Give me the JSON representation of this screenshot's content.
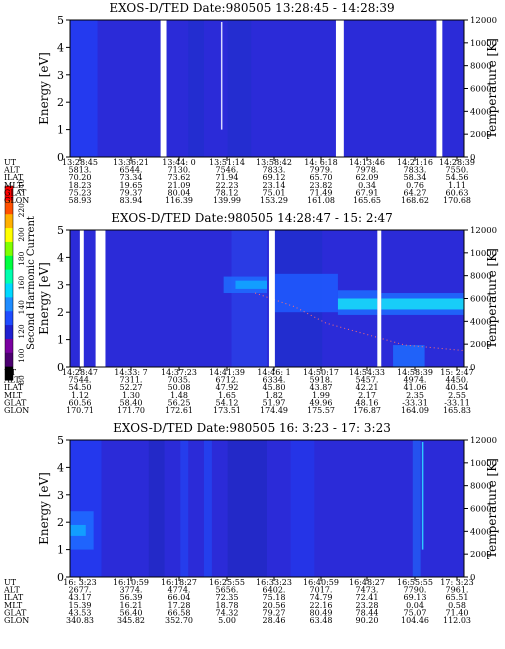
{
  "chart_data": [
    {
      "type": "heatmap",
      "title": "EXOS-D/TED   Date:980505   13:28:45 - 14:28:39",
      "ylabel": "Energy [eV]",
      "y2label": "Temperature [K]",
      "ylim": [
        0,
        5
      ],
      "y2lim": [
        0,
        12000
      ],
      "yticks": [
        "0",
        "1",
        "2",
        "3",
        "4",
        "5"
      ],
      "y2ticks": [
        "0",
        "2000",
        "4000",
        "6000",
        "8000",
        "10000",
        "12000"
      ],
      "background_color": "#2b2bd8",
      "gaps": [
        [
          0.23,
          0.245
        ],
        [
          0.675,
          0.695
        ],
        [
          0.93,
          0.945
        ]
      ],
      "bands": [
        {
          "start": 0.0,
          "end": 0.07,
          "color": "#1f44ff",
          "opacity": 0.6
        },
        {
          "start": 0.3,
          "end": 0.34,
          "color": "#1c30c8",
          "opacity": 0.5
        },
        {
          "start": 0.4,
          "end": 0.46,
          "color": "#1c30c8",
          "opacity": 0.45
        }
      ],
      "spikes": [
        {
          "at": 0.385,
          "color": "#d8d8ff"
        }
      ],
      "blobs": [],
      "dotted_line": [],
      "table": {
        "labels": [
          "UT",
          "ALT",
          "ILAT",
          "MLT",
          "GLAT",
          "GLON"
        ],
        "columns": [
          [
            "13:28:45",
            "5813.",
            "70.20",
            "18.23",
            "75.23",
            "58.93"
          ],
          [
            "13:36:21",
            "6544.",
            "73.34",
            "19.65",
            "79.37",
            "83.94"
          ],
          [
            "13:44: 0",
            "7130.",
            "73.62",
            "21.09",
            "80.04",
            "116.39"
          ],
          [
            "13:51:14",
            "7546.",
            "71.94",
            "22.23",
            "78.12",
            "139.99"
          ],
          [
            "13:58:42",
            "7833.",
            "69.12",
            "23.14",
            "75.01",
            "153.29"
          ],
          [
            "14: 6:18",
            "7979.",
            "65.70",
            "23.82",
            "71.49",
            "161.08"
          ],
          [
            "14:13:46",
            "7978.",
            "62.09",
            "0.34",
            "67.91",
            "165.65"
          ],
          [
            "14:21:16",
            "7833.",
            "58.34",
            "0.76",
            "64.27",
            "168.62"
          ],
          [
            "14:28:39",
            "7550.",
            "54.56",
            "1.11",
            "60.63",
            "170.68"
          ]
        ]
      }
    },
    {
      "type": "heatmap",
      "title": "EXOS-D/TED   Date:980505   14:28:47 - 15: 2:47",
      "ylabel": "Energy [eV]",
      "y2label": "Temperature [K]",
      "ylim": [
        0,
        5
      ],
      "y2lim": [
        0,
        12000
      ],
      "yticks": [
        "0",
        "1",
        "2",
        "3",
        "4",
        "5"
      ],
      "y2ticks": [
        "0",
        "2000",
        "4000",
        "6000",
        "8000",
        "10000",
        "12000"
      ],
      "background_color": "#2b2bd8",
      "gaps": [
        [
          0.025,
          0.035
        ],
        [
          0.065,
          0.09
        ],
        [
          0.505,
          0.52
        ],
        [
          0.78,
          0.79
        ]
      ],
      "bands": [
        {
          "start": 0.41,
          "end": 0.5,
          "color": "#2a4cf0",
          "opacity": 0.5
        },
        {
          "start": 0.52,
          "end": 0.64,
          "color": "#1c30c8",
          "opacity": 0.55
        }
      ],
      "spikes": [],
      "blobs": [
        {
          "x0": 0.39,
          "x1": 0.5,
          "y0": 2.7,
          "y1": 3.3,
          "color": "#1f6cff"
        },
        {
          "x0": 0.42,
          "x1": 0.5,
          "y0": 2.85,
          "y1": 3.15,
          "color": "#10a8ff"
        },
        {
          "x0": 0.52,
          "x1": 0.68,
          "y0": 2.0,
          "y1": 3.4,
          "color": "#1f5cff"
        },
        {
          "x0": 0.68,
          "x1": 0.78,
          "y0": 1.9,
          "y1": 2.8,
          "color": "#1f6cff"
        },
        {
          "x0": 0.68,
          "x1": 0.78,
          "y0": 2.1,
          "y1": 2.5,
          "color": "#18e0f8"
        },
        {
          "x0": 0.79,
          "x1": 1.0,
          "y0": 1.9,
          "y1": 2.7,
          "color": "#1f6cff"
        },
        {
          "x0": 0.79,
          "x1": 1.0,
          "y0": 2.1,
          "y1": 2.5,
          "color": "#18e0f8"
        },
        {
          "x0": 0.82,
          "x1": 0.9,
          "y0": 0.0,
          "y1": 0.8,
          "color": "#1f6cff"
        }
      ],
      "dotted_line": [
        [
          0.47,
          2.7
        ],
        [
          0.57,
          2.2
        ],
        [
          0.65,
          1.6
        ],
        [
          0.75,
          1.2
        ],
        [
          0.85,
          0.8
        ],
        [
          1.0,
          0.6
        ]
      ],
      "table": {
        "labels": [
          "UT",
          "ALT",
          "ILAT",
          "MLT",
          "GLAT",
          "GLON"
        ],
        "columns": [
          [
            "14:28:47",
            "7544.",
            "54.50",
            "1.12",
            "60.56",
            "170.71"
          ],
          [
            "14:33: 7",
            "7311.",
            "52.27",
            "1.30",
            "58.40",
            "171.70"
          ],
          [
            "14:37:23",
            "7035.",
            "50.08",
            "1.48",
            "56.25",
            "172.61"
          ],
          [
            "14:41:39",
            "6712.",
            "47.92",
            "1.65",
            "54.12",
            "173.51"
          ],
          [
            "14:46: 1",
            "6334.",
            "45.80",
            "1.82",
            "51.97",
            "174.49"
          ],
          [
            "14:50:17",
            "5918.",
            "43.87",
            "1.99",
            "49.96",
            "175.57"
          ],
          [
            "14:54:33",
            "5457.",
            "42.21",
            "2.17",
            "48.16",
            "176.87"
          ],
          [
            "14:58:39",
            "4974.",
            "41.06",
            "2.35",
            "-33.31",
            "164.09"
          ],
          [
            "15: 2:47",
            "4450.",
            "40.54",
            "2.55",
            "-33.11",
            "165.83"
          ]
        ]
      }
    },
    {
      "type": "heatmap",
      "title": "EXOS-D/TED   Date:980505   16: 3:23 - 17: 3:23",
      "ylabel": "Energy [eV]",
      "y2label": "Temperature [K]",
      "ylim": [
        0,
        5
      ],
      "y2lim": [
        0,
        12000
      ],
      "yticks": [
        "0",
        "1",
        "2",
        "3",
        "4",
        "5"
      ],
      "y2ticks": [
        "0",
        "2000",
        "4000",
        "6000",
        "8000",
        "10000",
        "12000"
      ],
      "background_color": "#2b2bd8",
      "gaps": [],
      "bands": [
        {
          "start": 0.0,
          "end": 0.08,
          "color": "#1f44ff",
          "opacity": 0.55
        },
        {
          "start": 0.2,
          "end": 0.24,
          "color": "#1c28b8",
          "opacity": 0.5
        },
        {
          "start": 0.28,
          "end": 0.3,
          "color": "#1f50ff",
          "opacity": 0.5
        },
        {
          "start": 0.34,
          "end": 0.36,
          "color": "#1f50ff",
          "opacity": 0.55
        },
        {
          "start": 0.4,
          "end": 0.5,
          "color": "#1c28b8",
          "opacity": 0.5
        },
        {
          "start": 0.56,
          "end": 0.62,
          "color": "#1f44ff",
          "opacity": 0.4
        },
        {
          "start": 0.87,
          "end": 0.89,
          "color": "#1f6cff",
          "opacity": 0.6
        }
      ],
      "spikes": [
        {
          "at": 0.895,
          "color": "#2ec8ff"
        }
      ],
      "blobs": [
        {
          "x0": 0.0,
          "x1": 0.06,
          "y0": 1.0,
          "y1": 2.4,
          "color": "#1f6cff"
        },
        {
          "x0": 0.0,
          "x1": 0.04,
          "y0": 1.5,
          "y1": 1.9,
          "color": "#10a8ff"
        }
      ],
      "dotted_line": [],
      "table": {
        "labels": [
          "UT",
          "ALT",
          "ILAT",
          "MLT",
          "GLAT",
          "GLON"
        ],
        "columns": [
          [
            "16: 3:23",
            "2677.",
            "43.17",
            "15.39",
            "43.53",
            "340.83"
          ],
          [
            "16:10:59",
            "3774.",
            "56.39",
            "16.21",
            "56.40",
            "345.82"
          ],
          [
            "16:18:27",
            "4774.",
            "66.04",
            "17.28",
            "66.58",
            "352.70"
          ],
          [
            "16:25:55",
            "5656.",
            "72.35",
            "18.78",
            "74.32",
            "5.00"
          ],
          [
            "16:33:23",
            "6402.",
            "75.18",
            "20.56",
            "79.27",
            "28.46"
          ],
          [
            "16:40:59",
            "7017.",
            "74.79",
            "22.16",
            "80.49",
            "63.48"
          ],
          [
            "16:48:27",
            "7473.",
            "72.41",
            "23.28",
            "78.44",
            "90.20"
          ],
          [
            "16:55:55",
            "7790.",
            "69.13",
            "0.04",
            "75.07",
            "104.46"
          ],
          [
            "17: 3:23",
            "7961.",
            "65.51",
            "0.58",
            "71.40",
            "112.03"
          ]
        ]
      }
    }
  ],
  "colorbar": {
    "label": "Second Harmonic Current",
    "ticks": [
      "80",
      "100",
      "120",
      "140",
      "160",
      "180",
      "200",
      "220",
      "240"
    ],
    "colors": [
      "#000000",
      "#4c0070",
      "#7a00a0",
      "#2020d0",
      "#1f4cff",
      "#1f8cff",
      "#00d8ff",
      "#00ffb0",
      "#00ff40",
      "#80ff00",
      "#ffff00",
      "#ffb000",
      "#ff5000",
      "#ff0000"
    ]
  }
}
